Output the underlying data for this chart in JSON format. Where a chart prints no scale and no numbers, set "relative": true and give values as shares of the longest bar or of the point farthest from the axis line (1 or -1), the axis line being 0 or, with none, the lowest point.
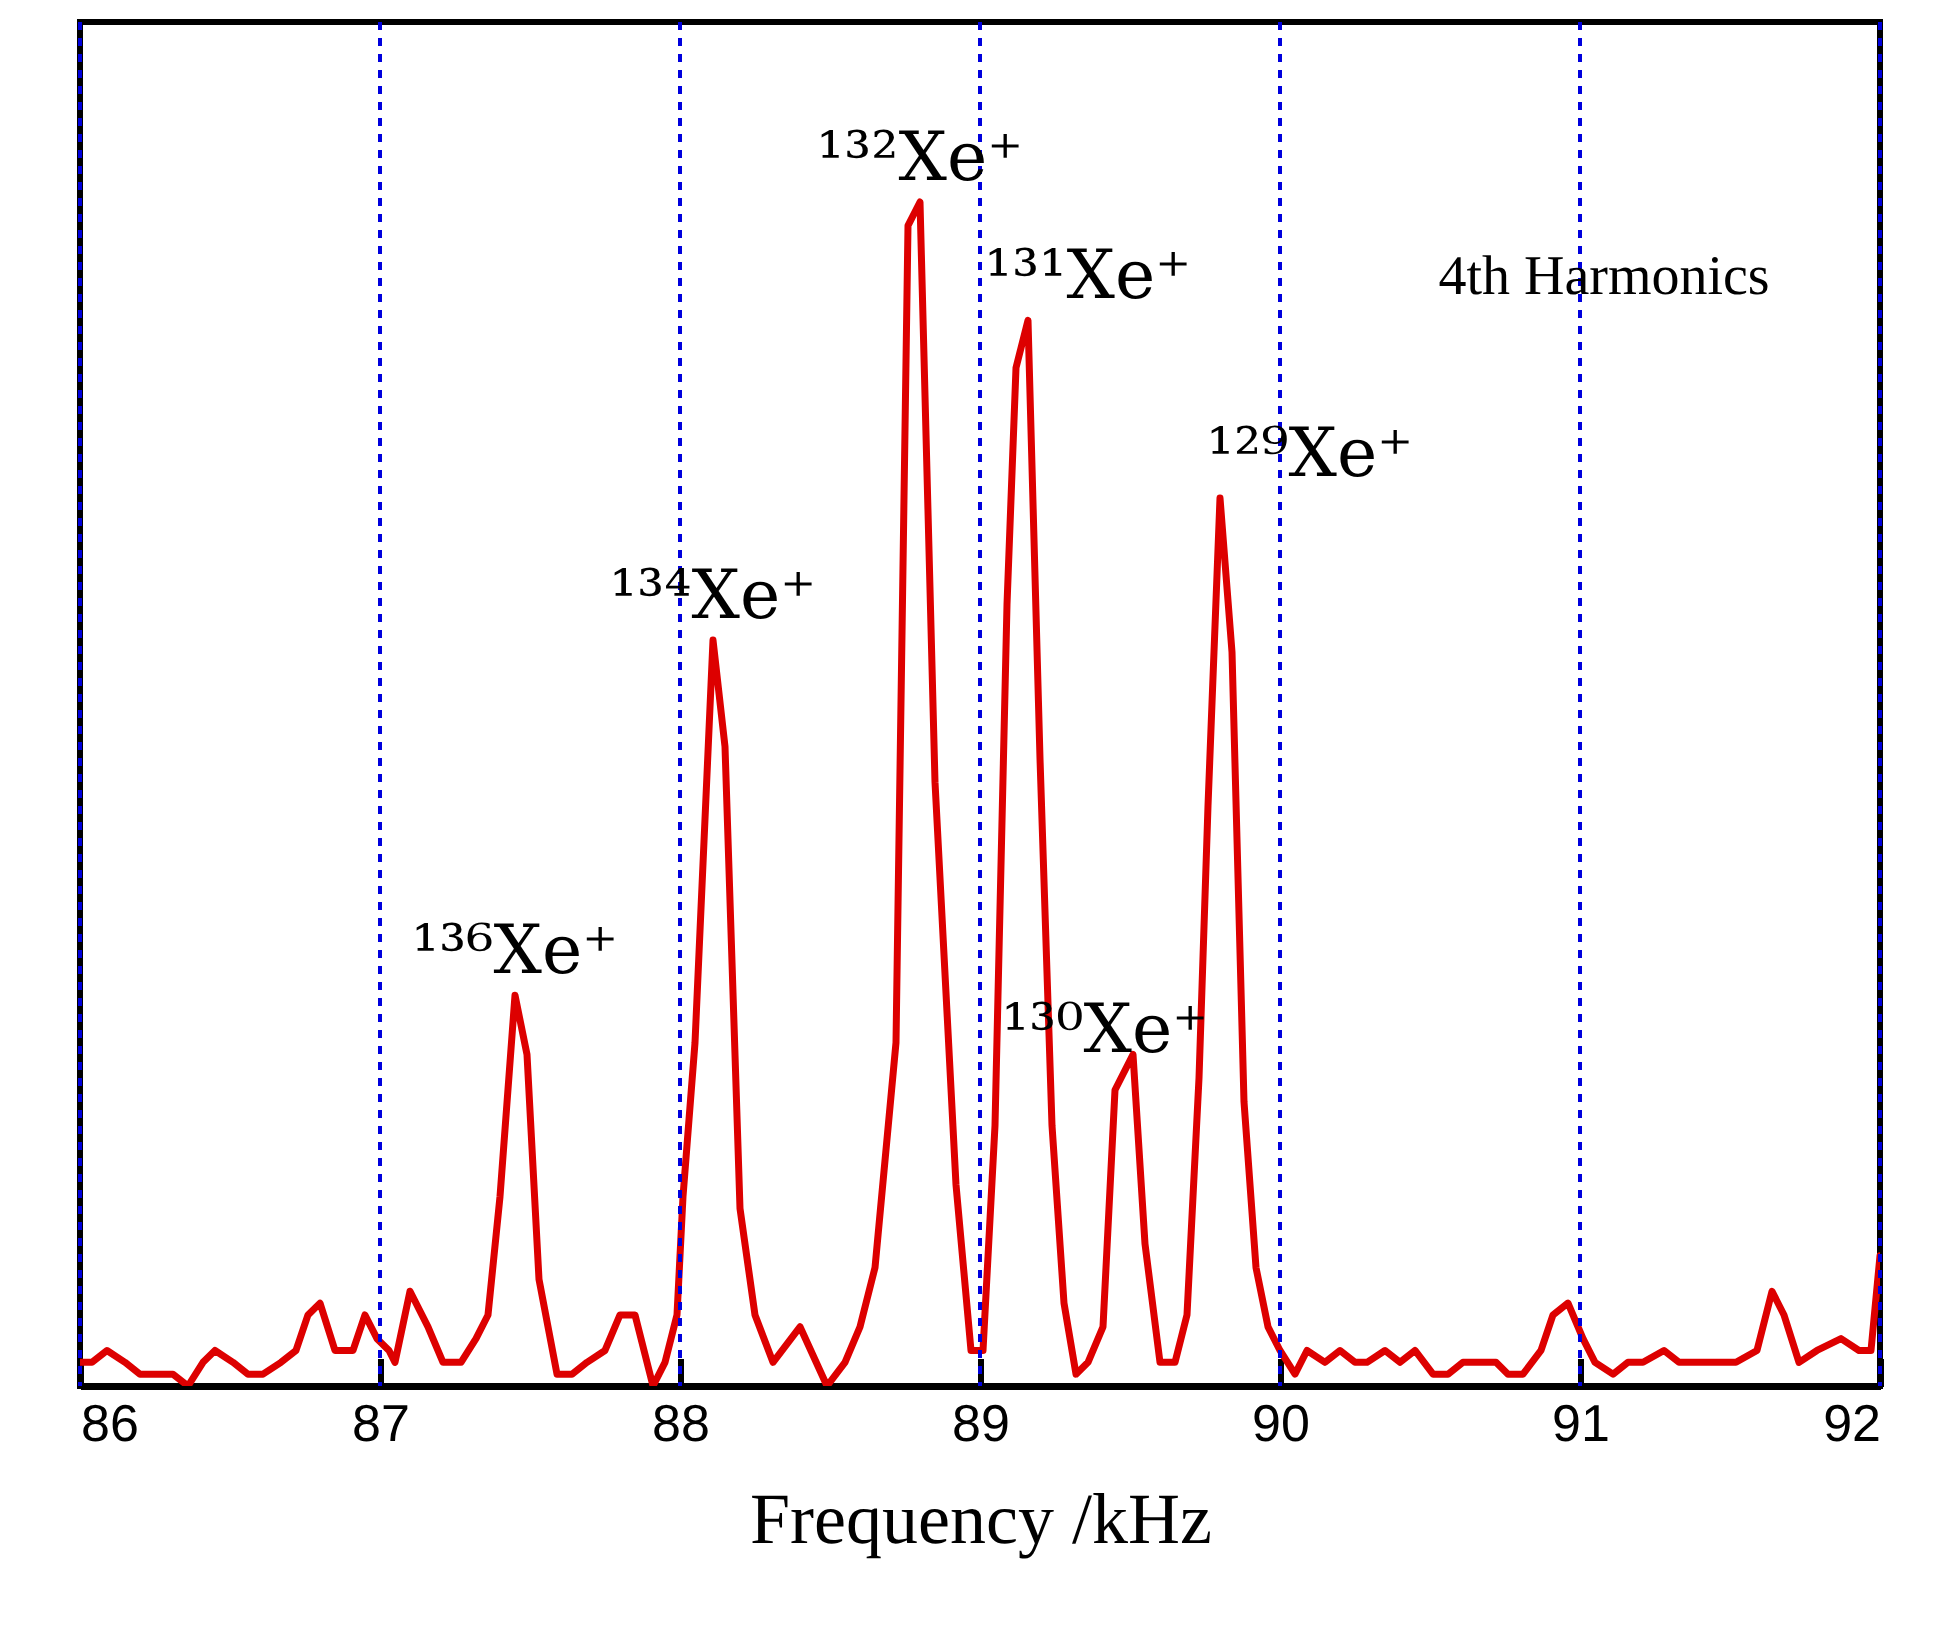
{
  "chart_data": {
    "type": "line",
    "relative": true,
    "xlabel": "Frequency /kHz",
    "xlim": [
      86,
      92
    ],
    "xticks": [
      86,
      87,
      88,
      89,
      90,
      91,
      92
    ],
    "grid": "x",
    "tick_labels": "x",
    "line_style": "solid",
    "marker": "none",
    "x": [
      86.0,
      86.04,
      86.09,
      86.15,
      86.2,
      86.25,
      86.31,
      86.36,
      86.41,
      86.45,
      86.51,
      86.56,
      86.61,
      86.67,
      86.72,
      86.76,
      86.8,
      86.85,
      86.91,
      86.95,
      86.99,
      87.03,
      87.05,
      87.1,
      87.16,
      87.21,
      87.27,
      87.32,
      87.36,
      87.4,
      87.45,
      87.49,
      87.53,
      87.59,
      87.64,
      87.69,
      87.75,
      87.8,
      87.85,
      87.91,
      87.95,
      87.99,
      88.01,
      88.05,
      88.11,
      88.15,
      88.2,
      88.25,
      88.31,
      88.4,
      88.49,
      88.55,
      88.6,
      88.65,
      88.72,
      88.76,
      88.8,
      88.85,
      88.92,
      88.97,
      89.01,
      89.05,
      89.09,
      89.12,
      89.16,
      89.2,
      89.24,
      89.28,
      89.32,
      89.36,
      89.41,
      89.45,
      89.51,
      89.55,
      89.6,
      89.65,
      89.69,
      89.73,
      89.76,
      89.8,
      89.84,
      89.88,
      89.92,
      89.96,
      90.0,
      90.05,
      90.09,
      90.15,
      90.2,
      90.25,
      90.29,
      90.35,
      90.4,
      90.45,
      90.51,
      90.56,
      90.61,
      90.67,
      90.72,
      90.76,
      90.81,
      90.87,
      90.91,
      90.96,
      91.01,
      91.05,
      91.11,
      91.16,
      91.21,
      91.28,
      91.33,
      91.4,
      91.45,
      91.52,
      91.59,
      91.64,
      91.68,
      91.73,
      91.79,
      91.87,
      91.93,
      91.97,
      92.0
    ],
    "series": [
      {
        "color": "#dd0000",
        "values": [
          0.02,
          0.02,
          0.03,
          0.02,
          0.01,
          0.01,
          0.01,
          0.0,
          0.02,
          0.03,
          0.02,
          0.01,
          0.01,
          0.02,
          0.03,
          0.06,
          0.07,
          0.03,
          0.03,
          0.06,
          0.04,
          0.03,
          0.02,
          0.08,
          0.05,
          0.02,
          0.02,
          0.04,
          0.06,
          0.16,
          0.33,
          0.28,
          0.09,
          0.01,
          0.01,
          0.02,
          0.03,
          0.06,
          0.06,
          0.0,
          0.02,
          0.06,
          0.16,
          0.29,
          0.63,
          0.54,
          0.15,
          0.06,
          0.02,
          0.05,
          0.0,
          0.02,
          0.05,
          0.1,
          0.29,
          0.98,
          1.0,
          0.51,
          0.17,
          0.03,
          0.03,
          0.22,
          0.66,
          0.86,
          0.9,
          0.53,
          0.22,
          0.07,
          0.01,
          0.02,
          0.05,
          0.25,
          0.28,
          0.12,
          0.02,
          0.02,
          0.06,
          0.26,
          0.49,
          0.75,
          0.62,
          0.24,
          0.1,
          0.05,
          0.03,
          0.01,
          0.03,
          0.02,
          0.03,
          0.02,
          0.02,
          0.03,
          0.02,
          0.03,
          0.01,
          0.01,
          0.02,
          0.02,
          0.02,
          0.01,
          0.01,
          0.03,
          0.06,
          0.07,
          0.04,
          0.02,
          0.01,
          0.02,
          0.02,
          0.03,
          0.02,
          0.02,
          0.02,
          0.02,
          0.03,
          0.08,
          0.06,
          0.02,
          0.03,
          0.04,
          0.03,
          0.03,
          0.11
        ]
      }
    ],
    "annotations": [
      {
        "text": "¹³⁶Xe⁺",
        "x": 87.45,
        "y": 0.33
      },
      {
        "text": "¹³⁴Xe⁺",
        "x": 88.11,
        "y": 0.63
      },
      {
        "text": "¹³²Xe⁺",
        "x": 88.8,
        "y": 1.0
      },
      {
        "text": "¹³¹Xe⁺",
        "x": 89.16,
        "y": 0.9
      },
      {
        "text": "¹³⁰Xe⁺",
        "x": 89.51,
        "y": 0.28
      },
      {
        "text": "¹²⁹Xe⁺",
        "x": 89.8,
        "y": 0.75
      },
      "4th Harmonics"
    ]
  }
}
